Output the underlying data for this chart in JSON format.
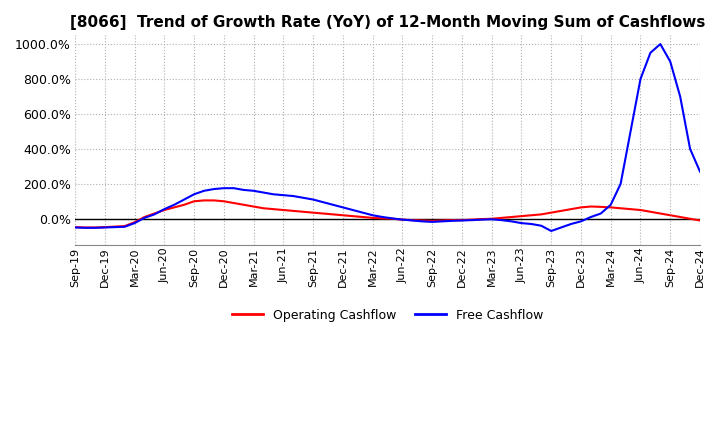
{
  "title": "[8066]  Trend of Growth Rate (YoY) of 12-Month Moving Sum of Cashflows",
  "title_fontsize": 11,
  "ylim": [
    -150,
    1050
  ],
  "yticks": [
    0,
    200,
    400,
    600,
    800,
    1000
  ],
  "ytick_labels": [
    "0.0%",
    "200.0%",
    "400.0%",
    "600.0%",
    "800.0%",
    "1000.0%"
  ],
  "background_color": "#ffffff",
  "grid_color": "#b0b0b0",
  "grid_style": "dotted",
  "legend_labels": [
    "Operating Cashflow",
    "Free Cashflow"
  ],
  "legend_colors": [
    "#ff0000",
    "#0000ff"
  ],
  "dates_count": 64,
  "operating_cf": [
    -48,
    -50,
    -50,
    -48,
    -45,
    -42,
    -20,
    10,
    30,
    50,
    65,
    80,
    100,
    105,
    105,
    100,
    90,
    80,
    70,
    60,
    55,
    50,
    45,
    40,
    35,
    30,
    25,
    20,
    15,
    10,
    5,
    2,
    0,
    -5,
    -8,
    -10,
    -12,
    -10,
    -8,
    -8,
    -5,
    -2,
    0,
    5,
    10,
    15,
    20,
    25,
    35,
    45,
    55,
    65,
    70,
    68,
    65,
    60,
    55,
    50,
    40,
    30,
    20,
    10,
    0,
    -10
  ],
  "free_cf": [
    -50,
    -52,
    -52,
    -50,
    -48,
    -46,
    -25,
    5,
    25,
    55,
    80,
    110,
    140,
    160,
    170,
    175,
    175,
    165,
    160,
    150,
    140,
    135,
    130,
    120,
    110,
    95,
    80,
    65,
    50,
    35,
    20,
    10,
    2,
    -5,
    -10,
    -15,
    -18,
    -15,
    -12,
    -10,
    -8,
    -5,
    -3,
    -8,
    -15,
    -25,
    -30,
    -40,
    -70,
    -50,
    -30,
    -15,
    10,
    30,
    80,
    200,
    500,
    800,
    950,
    1000,
    900,
    700,
    400,
    270
  ],
  "xtick_positions": [
    0,
    3,
    6,
    9,
    12,
    15,
    18,
    21,
    24,
    27,
    30,
    33,
    36,
    39,
    42,
    45,
    48,
    51,
    54,
    57,
    60,
    63
  ],
  "xtick_labels": [
    "Sep-19",
    "Dec-19",
    "Mar-20",
    "Jun-20",
    "Sep-20",
    "Dec-20",
    "Mar-21",
    "Jun-21",
    "Sep-21",
    "Dec-21",
    "Mar-22",
    "Jun-22",
    "Sep-22",
    "Dec-22",
    "Mar-23",
    "Jun-23",
    "Sep-23",
    "Dec-23",
    "Mar-24",
    "Jun-24",
    "Sep-24",
    "Dec-24"
  ]
}
